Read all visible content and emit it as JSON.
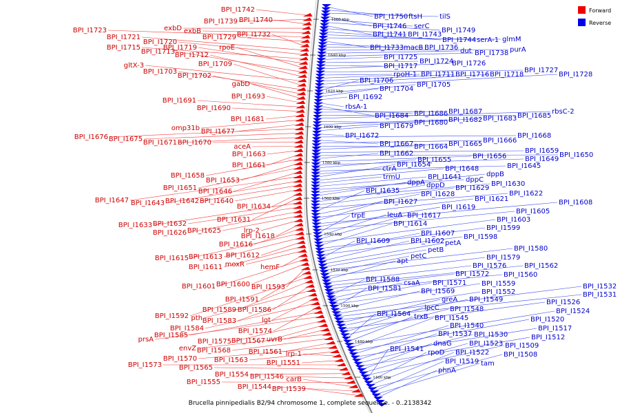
{
  "title": "Brucella pinnipedialis B2/94 chromosome 1, complete sequence. - 0..2138342",
  "legend": [
    {
      "label": "Forward",
      "color": "#ee0000"
    },
    {
      "label": "Reverse",
      "color": "#0000ee"
    }
  ],
  "colors": {
    "forward_label": "#cc0000",
    "reverse_label": "#0000cc",
    "backbone": "#808080"
  },
  "ticks": [
    "1660 kbp",
    "1640 kbp",
    "1620 kbp",
    "1600 kbp",
    "1580 kbp",
    "1560 kbp",
    "1540 kbp",
    "1520 kbp",
    "1500 kbp",
    "1480 kbp",
    "1460 kbp"
  ],
  "forward_labels": [
    "BPI_I1742",
    "BPI_I1739",
    "BPI_I1740",
    "exbD",
    "exbB",
    "BPI_I1723",
    "BPI_I1729",
    "BPI_I1732",
    "BPI_I1721",
    "BPI_I1720",
    "BPI_I1715",
    "BPI_I1719",
    "rpoE",
    "BPI_I1713",
    "BPI_I1712",
    "gltX-3",
    "BPI_I1709",
    "BPI_I1703",
    "BPI_I1702",
    "gabD",
    "BPI_I1693",
    "BPI_I1691",
    "BPI_I1690",
    "BPI_I1681",
    "omp31b",
    "BPI_I1677",
    "BPI_I1676",
    "BPI_I1675",
    "BPI_I1671",
    "BPI_I1670",
    "aceA",
    "BPI_I1663",
    "BPI_I1661",
    "BPI_I1658",
    "BPI_I1653",
    "BPI_I1651",
    "BPI_I1646",
    "BPI_I1647",
    "BPI_I1643",
    "BPI_I1642",
    "BPI_I1640",
    "BPI_I1634",
    "BPI_I1631",
    "BPI_I1633",
    "BPI_I1632",
    "BPI_I1626",
    "BPI_I1625",
    "lrp-2",
    "BPI_I1618",
    "BPI_I1616",
    "BPI_I1615",
    "BPI_I1613",
    "BPI_I1612",
    "BPI_I1611",
    "moxR",
    "hemF",
    "BPI_I1601",
    "BPI_I1600",
    "BPI_I1593",
    "BPI_I1591",
    "BPI_I1592",
    "BPI_I1589",
    "BPI_I1586",
    "pth",
    "BPI_I1583",
    "lgt",
    "BPI_I1584",
    "BPI_I1574",
    "BPI_I1585",
    "prsA",
    "BPI_I1575",
    "BPI_I1567",
    "uvrB",
    "envZ",
    "BPI_I1568",
    "BPI_I1561",
    "BPI_I1570",
    "BPI_I1563",
    "lrp-1",
    "BPI_I1551",
    "BPI_I1573",
    "BPI_I1565",
    "BPI_I1554",
    "BPI_I1546",
    "BPI_I1555",
    "carB",
    "BPI_I1544",
    "BPI_I1539"
  ],
  "reverse_labels": [
    "BPI_I1750",
    "ftsH",
    "tilS",
    "BPI_I1746",
    "serC",
    "BPI_I1749",
    "BPI_I1741",
    "BPI_I1743",
    "BPI_I1744",
    "serA-1",
    "glmM",
    "BPI_I1733",
    "macB",
    "BPI_I1736",
    "purA",
    "dut",
    "BPI_I1738",
    "BPI_I1725",
    "BPI_I1724",
    "BPI_I1717",
    "BPI_I1726",
    "BPI_I1727",
    "rpoH-1",
    "BPI_I1711",
    "BPI_I1716",
    "BPI_I1718",
    "BPI_I1728",
    "BPI_I1706",
    "BPI_I1705",
    "BPI_I1704",
    "BPI_I1692",
    "rbsA-1",
    "BPI_I1684",
    "BPI_I1686",
    "BPI_I1687",
    "BPI_I1685",
    "rbsC-2",
    "BPI_I1680",
    "BPI_I1682",
    "BPI_I1683",
    "BPI_I1679",
    "BPI_I1672",
    "BPI_I1668",
    "BPI_I1667",
    "BPI_I1666",
    "BPI_I1664",
    "BPI_I1665",
    "BPI_I1659",
    "BPI_I1650",
    "BPI_I1662",
    "BPI_I1656",
    "BPI_I1649",
    "BPI_I1655",
    "BPI_I1645",
    "ctrA",
    "BPI_I1654",
    "BPI_I1648",
    "trmU",
    "BPI_I1641",
    "dppC",
    "dppB",
    "dppA",
    "BPI_I1630",
    "dppD",
    "BPI_I1629",
    "BPI_I1622",
    "BPI_I1635",
    "BPI_I1628",
    "BPI_I1621",
    "BPI_I1627",
    "BPI_I1608",
    "BPI_I1619",
    "BPI_I1605",
    "trpE",
    "leuA",
    "BPI_I1617",
    "BPI_I1603",
    "BPI_I1614",
    "BPI_I1599",
    "BPI_I1607",
    "BPI_I1598",
    "BPI_I1609",
    "BPI_I1602",
    "petA",
    "petB",
    "BPI_I1580",
    "petC",
    "BPI_I1579",
    "apt",
    "BPI_I1576",
    "BPI_I1562",
    "BPI_I1572",
    "BPI_I1560",
    "BPI_I1588",
    "csaA",
    "BPI_I1571",
    "BPI_I1559",
    "BPI_I1581",
    "BPI_I1569",
    "BPI_I1552",
    "BPI_I1532",
    "BPI_I1531",
    "greA",
    "BPI_I1549",
    "BPI_I1526",
    "lpcC",
    "BPI_I1548",
    "BPI_I1564",
    "trxB",
    "BPI_I1524",
    "BPI_I1545",
    "BPI_I1520",
    "BPI_I1540",
    "BPI_I1517",
    "BPI_I1537",
    "BPI_I1530",
    "BPI_I1512",
    "dnaG",
    "BPI_I1523",
    "BPI_I1509",
    "BPI_I1541",
    "rpoD",
    "BPI_I1522",
    "BPI_I1508",
    "BPI_I1519",
    "tam",
    "phnA"
  ]
}
